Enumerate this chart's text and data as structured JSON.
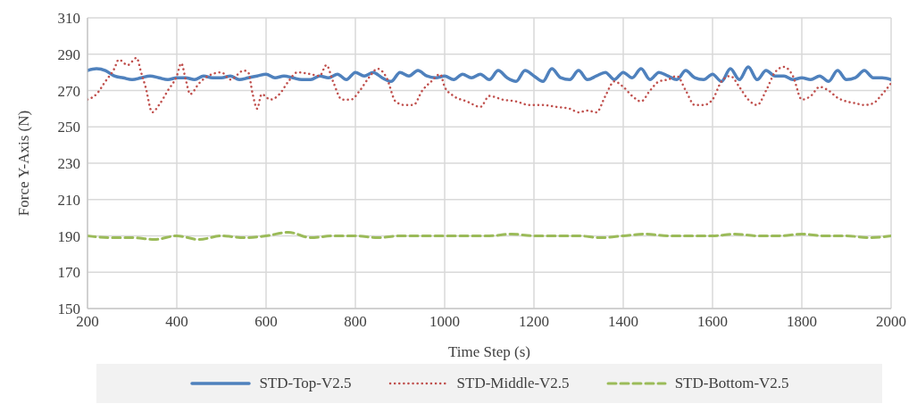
{
  "chart_data": {
    "type": "line",
    "xlabel": "Time Step (s)",
    "ylabel": "Force Y-Axis (N)",
    "xlim": [
      200,
      2000
    ],
    "ylim": [
      150,
      310
    ],
    "xticks": [
      200,
      400,
      600,
      800,
      1000,
      1200,
      1400,
      1600,
      1800,
      2000
    ],
    "yticks": [
      150,
      170,
      190,
      210,
      230,
      250,
      270,
      290,
      310
    ],
    "grid": true,
    "legend": "bottom",
    "marker": "none",
    "series": [
      {
        "name": "STD-Top-V2.5",
        "color": "#4f81bd",
        "line_style": "solid",
        "x": [
          200,
          220,
          240,
          260,
          280,
          300,
          320,
          340,
          360,
          380,
          400,
          420,
          440,
          460,
          480,
          500,
          520,
          540,
          560,
          580,
          600,
          620,
          640,
          660,
          680,
          700,
          720,
          740,
          760,
          780,
          800,
          820,
          840,
          860,
          880,
          900,
          920,
          940,
          960,
          980,
          1000,
          1020,
          1040,
          1060,
          1080,
          1100,
          1120,
          1140,
          1160,
          1180,
          1200,
          1220,
          1240,
          1260,
          1280,
          1300,
          1320,
          1340,
          1360,
          1380,
          1400,
          1420,
          1440,
          1460,
          1480,
          1500,
          1520,
          1540,
          1560,
          1580,
          1600,
          1620,
          1640,
          1660,
          1680,
          1700,
          1720,
          1740,
          1760,
          1780,
          1800,
          1820,
          1840,
          1860,
          1880,
          1900,
          1920,
          1940,
          1960,
          1980,
          2000
        ],
        "values": [
          281,
          282,
          281,
          278,
          277,
          276,
          277,
          278,
          277,
          276,
          277,
          277,
          276,
          278,
          277,
          277,
          278,
          276,
          277,
          278,
          279,
          277,
          278,
          277,
          276,
          276,
          278,
          277,
          279,
          276,
          280,
          278,
          280,
          277,
          275,
          280,
          278,
          281,
          278,
          277,
          278,
          276,
          279,
          277,
          279,
          276,
          281,
          277,
          275,
          281,
          278,
          275,
          282,
          277,
          276,
          281,
          276,
          278,
          280,
          276,
          280,
          277,
          282,
          276,
          280,
          278,
          276,
          281,
          277,
          276,
          279,
          275,
          282,
          276,
          283,
          276,
          281,
          278,
          278,
          276,
          277,
          276,
          278,
          275,
          281,
          276,
          277,
          281,
          277,
          277,
          276
        ]
      },
      {
        "name": "STD-Middle-V2.5",
        "color": "#c0504d",
        "line_style": "dotted",
        "x": [
          200,
          220,
          240,
          260,
          270,
          290,
          310,
          320,
          330,
          345,
          360,
          380,
          400,
          410,
          420,
          430,
          450,
          470,
          500,
          520,
          550,
          560,
          570,
          580,
          590,
          610,
          630,
          650,
          670,
          700,
          720,
          735,
          750,
          770,
          790,
          810,
          830,
          850,
          870,
          890,
          910,
          930,
          950,
          970,
          990,
          1000,
          1020,
          1050,
          1080,
          1100,
          1130,
          1160,
          1190,
          1220,
          1250,
          1280,
          1300,
          1320,
          1340,
          1360,
          1380,
          1400,
          1420,
          1440,
          1460,
          1480,
          1500,
          1520,
          1540,
          1560,
          1580,
          1600,
          1620,
          1640,
          1660,
          1680,
          1700,
          1720,
          1740,
          1760,
          1780,
          1800,
          1820,
          1840,
          1860,
          1880,
          1900,
          1920,
          1940,
          1960,
          1980,
          2000
        ],
        "values": [
          265,
          268,
          275,
          282,
          287,
          284,
          288,
          280,
          272,
          258,
          262,
          270,
          278,
          285,
          276,
          268,
          274,
          278,
          280,
          276,
          281,
          280,
          268,
          260,
          268,
          265,
          268,
          275,
          280,
          279,
          278,
          284,
          275,
          265,
          265,
          270,
          277,
          282,
          277,
          264,
          262,
          262,
          270,
          275,
          279,
          272,
          267,
          264,
          261,
          267,
          265,
          264,
          262,
          262,
          261,
          260,
          258,
          259,
          258,
          267,
          275,
          272,
          267,
          264,
          270,
          275,
          276,
          278,
          270,
          262,
          262,
          265,
          275,
          278,
          272,
          265,
          262,
          270,
          280,
          283,
          278,
          265,
          267,
          272,
          270,
          266,
          264,
          263,
          262,
          263,
          268,
          274
        ]
      },
      {
        "name": "STD-Bottom-V2.5",
        "color": "#9bbb59",
        "line_style": "dashed",
        "x": [
          200,
          250,
          300,
          350,
          400,
          450,
          500,
          550,
          600,
          650,
          700,
          750,
          800,
          850,
          900,
          950,
          1000,
          1050,
          1100,
          1150,
          1200,
          1250,
          1300,
          1350,
          1400,
          1450,
          1500,
          1550,
          1600,
          1650,
          1700,
          1750,
          1800,
          1850,
          1900,
          1950,
          2000
        ],
        "values": [
          190,
          189,
          189,
          188,
          190,
          188,
          190,
          189,
          190,
          192,
          189,
          190,
          190,
          189,
          190,
          190,
          190,
          190,
          190,
          191,
          190,
          190,
          190,
          189,
          190,
          191,
          190,
          190,
          190,
          191,
          190,
          190,
          191,
          190,
          190,
          189,
          190
        ]
      }
    ]
  }
}
